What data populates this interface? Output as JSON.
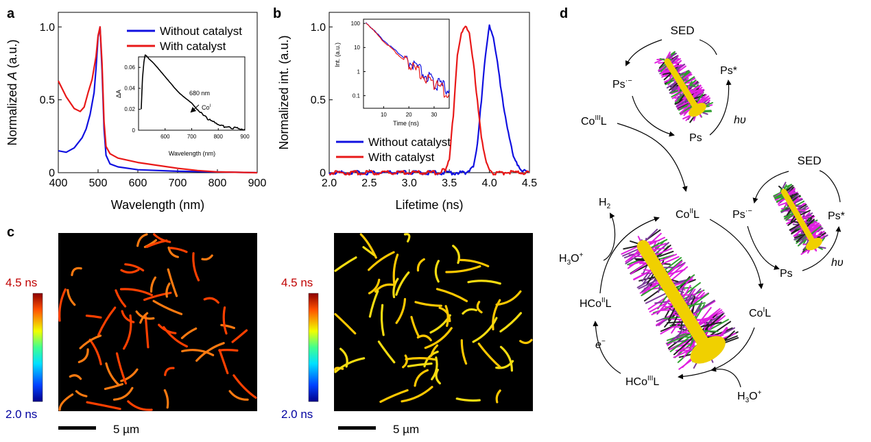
{
  "panel_labels": {
    "a": "a",
    "b": "b",
    "c": "c",
    "d": "d"
  },
  "colors": {
    "blue": "#1010e0",
    "red": "#e81818",
    "black": "#000000",
    "magenta": "#e020e0",
    "green": "#30a030",
    "yellow": "#f0d000",
    "orange": "#ff8000"
  },
  "chart_data": [
    {
      "id": "panel-a",
      "type": "line",
      "xlabel": "Wavelength (nm)",
      "ylabel_pre": "Normalized ",
      "ylabel_italic": "A",
      "ylabel_post": " (a.u.)",
      "xlim": [
        400,
        900
      ],
      "ylim": [
        0,
        1.1
      ],
      "xticks": [
        400,
        500,
        600,
        700,
        800,
        900
      ],
      "yticks": [
        0,
        0.5,
        1.0
      ],
      "ytick_labels": [
        "0",
        "0.5",
        "1.0"
      ],
      "legend_position": "top-right",
      "series": [
        {
          "name": "Without catalyst",
          "color": "#1010e0",
          "x": [
            400,
            420,
            440,
            460,
            470,
            480,
            490,
            495,
            500,
            505,
            510,
            515,
            520,
            530,
            550,
            600,
            700,
            800,
            900
          ],
          "y": [
            0.15,
            0.14,
            0.17,
            0.24,
            0.3,
            0.4,
            0.55,
            0.72,
            0.93,
            1.0,
            0.7,
            0.3,
            0.12,
            0.06,
            0.04,
            0.02,
            0.01,
            0.005,
            0.0
          ]
        },
        {
          "name": "With catalyst",
          "color": "#e81818",
          "x": [
            400,
            420,
            440,
            455,
            465,
            475,
            485,
            495,
            500,
            505,
            510,
            515,
            520,
            530,
            550,
            600,
            650,
            700,
            750,
            800,
            900
          ],
          "y": [
            0.63,
            0.52,
            0.44,
            0.42,
            0.45,
            0.55,
            0.64,
            0.8,
            0.94,
            1.0,
            0.75,
            0.35,
            0.18,
            0.13,
            0.1,
            0.07,
            0.05,
            0.03,
            0.015,
            0.005,
            0.0
          ]
        }
      ],
      "inset": {
        "type": "line",
        "xlabel": "Wavelength (nm)",
        "ylabel": "ΔA",
        "xlim": [
          500,
          900
        ],
        "ylim": [
          0,
          0.07
        ],
        "xticks": [
          600,
          700,
          800,
          900
        ],
        "yticks": [
          0,
          0.02,
          0.04,
          0.06
        ],
        "ytick_labels": [
          "0",
          "0.02",
          "0.04",
          "0.06"
        ],
        "annotation_wavelength": "680 nm",
        "annotation_species": "Co",
        "annotation_species_sup": "I",
        "series": [
          {
            "color": "#000000",
            "x": [
              510,
              515,
              520,
              525,
              530,
              540,
              560,
              580,
              600,
              620,
              640,
              660,
              680,
              700,
              720,
              740,
              760,
              780,
              800,
              830,
              860,
              900
            ],
            "y": [
              0.02,
              0.05,
              0.065,
              0.072,
              0.071,
              0.068,
              0.063,
              0.057,
              0.051,
              0.045,
              0.039,
              0.034,
              0.03,
              0.026,
              0.02,
              0.016,
              0.011,
              0.008,
              0.005,
              0.003,
              0.002,
              0.001
            ]
          }
        ]
      }
    },
    {
      "id": "panel-b",
      "type": "line",
      "xlabel": "Lifetime (ns)",
      "ylabel": "Normalized int. (a.u.)",
      "xlim": [
        2.0,
        4.5
      ],
      "ylim": [
        0,
        1.1
      ],
      "xticks": [
        2.0,
        2.5,
        3.0,
        3.5,
        4.0,
        4.5
      ],
      "xtick_labels": [
        "2.0",
        "2.5",
        "3.0",
        "3.5",
        "4.0",
        "4.5"
      ],
      "yticks": [
        0,
        0.5,
        1.0
      ],
      "ytick_labels": [
        "0",
        "0.5",
        "1.0"
      ],
      "legend_position": "bottom-left",
      "series": [
        {
          "name": "Without catalyst",
          "color": "#1010e0",
          "x": [
            2.0,
            3.7,
            3.75,
            3.8,
            3.85,
            3.9,
            3.95,
            4.0,
            4.05,
            4.1,
            4.15,
            4.2,
            4.25,
            4.3,
            4.35,
            4.4,
            4.5
          ],
          "y": [
            0,
            0,
            0.02,
            0.05,
            0.2,
            0.5,
            0.8,
            1.0,
            0.92,
            0.75,
            0.55,
            0.38,
            0.25,
            0.12,
            0.06,
            0.02,
            0
          ]
        },
        {
          "name": "With catalyst",
          "color": "#e81818",
          "x": [
            2.0,
            3.35,
            3.45,
            3.5,
            3.55,
            3.6,
            3.65,
            3.7,
            3.75,
            3.8,
            3.85,
            3.9,
            3.95,
            4.0,
            4.05,
            4.5
          ],
          "y": [
            0,
            0,
            0.02,
            0.1,
            0.4,
            0.8,
            0.95,
            1.0,
            0.95,
            0.75,
            0.5,
            0.25,
            0.1,
            0.03,
            0,
            0
          ]
        }
      ],
      "inset": {
        "type": "line",
        "xlabel": "Time (ns)",
        "ylabel": "Int. (a.u.)",
        "yscale": "log",
        "xlim": [
          2,
          36
        ],
        "ylim": [
          0.03,
          150
        ],
        "xticks": [
          10,
          20,
          30
        ],
        "yticks": [
          0.1,
          1,
          10,
          100
        ],
        "ytick_labels": [
          "0.1",
          "1",
          "10",
          "100"
        ],
        "series": [
          {
            "color": "#1010e0",
            "x": [
              3,
              10,
              20,
              30,
              36
            ],
            "y": [
              110,
              20,
              2.5,
              0.35,
              0.18
            ]
          },
          {
            "color": "#e81818",
            "x": [
              3,
              10,
              20,
              30,
              36
            ],
            "y": [
              110,
              18,
              2,
              0.28,
              0.12
            ]
          }
        ]
      }
    }
  ],
  "panel_c": {
    "colorbar_max": "4.5 ns",
    "colorbar_min": "2.0 ns",
    "scalebar": "5 µm"
  },
  "panel_d": {
    "sed": "SED",
    "ps_radical": "Ps",
    "ps_radical_sup": "·−",
    "ps_excited": "Ps*",
    "ps": "Ps",
    "hv": "hυ",
    "co3l_pre": "Co",
    "co3l_sup": "III",
    "co3l_post": "L",
    "co2l_pre": "Co",
    "co2l_sup": "II",
    "co2l_post": "L",
    "co1l_pre": "Co",
    "co1l_sup": "I",
    "co1l_post": "L",
    "hco3l_pre": "HCo",
    "hco3l_sup": "III",
    "hco3l_post": "L",
    "hco2l_pre": "HCo",
    "hco2l_sup": "II",
    "hco2l_post": "L",
    "h2_pre": "H",
    "h2_sub": "2",
    "h3o_pre": "H",
    "h3o_sub": "3",
    "h3o_post": "O",
    "h3o_sup": "+",
    "electron_pre": "e",
    "electron_sup": "−"
  }
}
